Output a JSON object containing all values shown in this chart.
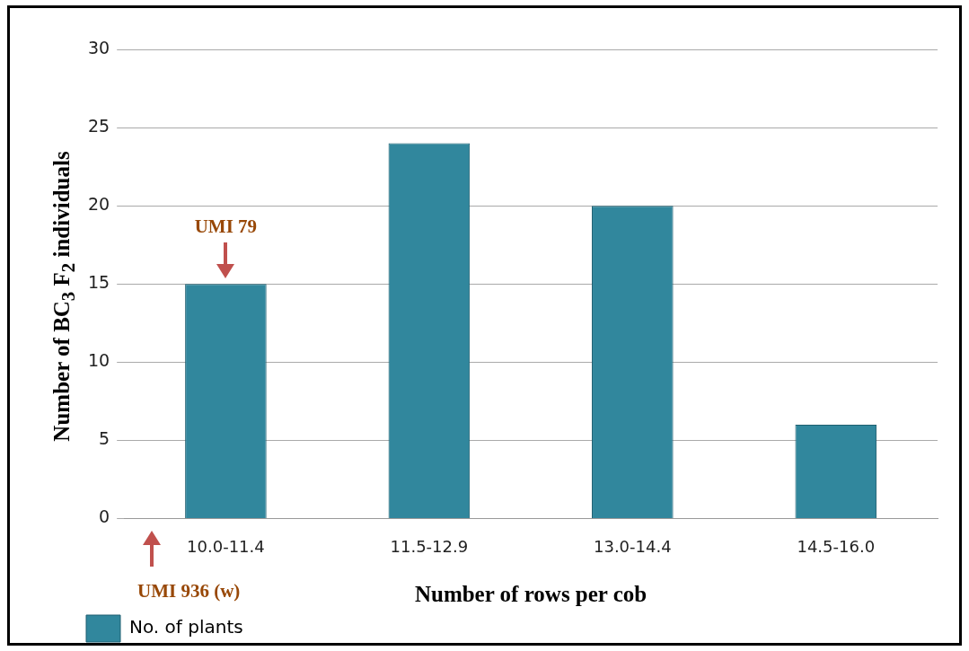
{
  "chart_data": {
    "type": "bar",
    "xlabel": "Number of rows per cob",
    "ylabel": "Number of BC$_{3}$ F$_{2}$ individuals",
    "categories": [
      "10.0-11.4",
      "11.5-12.9",
      "13.0-14.4",
      "14.5-16.0"
    ],
    "series": [
      {
        "name": "No. of plants",
        "color": "#31879d",
        "values": [
          15,
          24,
          20,
          6
        ]
      }
    ],
    "ylim": [
      0,
      30
    ],
    "yticks": [
      0,
      5,
      10,
      15,
      20,
      25,
      30
    ],
    "grid": "y",
    "legend": "bottom left",
    "annotations": [
      {
        "text": "UMI 79",
        "x": "10.0-11.4",
        "y": 15
      },
      "UMI 936 (w)"
    ]
  }
}
